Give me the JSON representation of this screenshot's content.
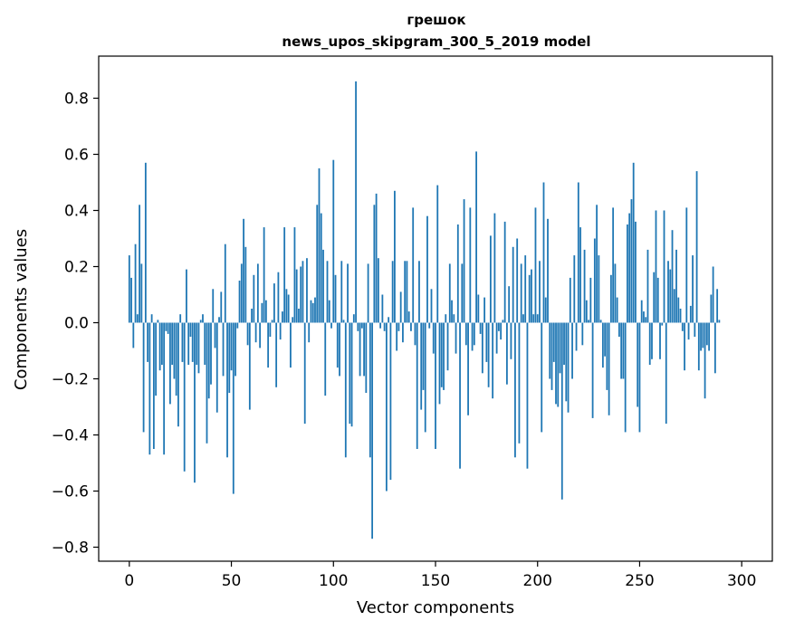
{
  "chart_data": {
    "type": "bar",
    "title": "грешок",
    "subtitle": "news_upos_skipgram_300_5_2019 model",
    "xlabel": "Vector components",
    "ylabel": "Components values",
    "xlim": [
      -15,
      315
    ],
    "ylim": [
      -0.85,
      0.95
    ],
    "xticks": [
      0,
      50,
      100,
      150,
      200,
      250,
      300
    ],
    "yticks": [
      -0.8,
      -0.6,
      -0.4,
      -0.2,
      0.0,
      0.2,
      0.4,
      0.6,
      0.8
    ],
    "ytick_labels": [
      "−0.8",
      "−0.6",
      "−0.4",
      "−0.2",
      "0.0",
      "0.2",
      "0.4",
      "0.6",
      "0.8"
    ],
    "bar_color": "#1f77b4",
    "values": [
      0.24,
      0.16,
      -0.09,
      0.28,
      0.03,
      0.42,
      0.21,
      -0.39,
      0.57,
      -0.14,
      -0.47,
      0.03,
      -0.45,
      -0.26,
      0.01,
      -0.17,
      -0.15,
      -0.47,
      -0.03,
      -0.04,
      -0.29,
      -0.15,
      -0.2,
      -0.26,
      -0.37,
      0.03,
      -0.14,
      -0.53,
      0.19,
      -0.15,
      -0.05,
      -0.14,
      -0.57,
      -0.15,
      -0.18,
      0.01,
      0.03,
      -0.15,
      -0.43,
      -0.27,
      -0.22,
      0.12,
      -0.09,
      -0.32,
      0.02,
      0.11,
      -0.19,
      0.28,
      -0.48,
      -0.25,
      -0.17,
      -0.61,
      -0.19,
      -0.02,
      0.15,
      0.21,
      0.37,
      0.27,
      -0.08,
      -0.31,
      0.05,
      0.17,
      -0.07,
      0.21,
      -0.09,
      0.07,
      0.34,
      0.08,
      -0.16,
      -0.05,
      0.01,
      0.14,
      -0.23,
      0.18,
      -0.06,
      0.04,
      0.34,
      0.12,
      0.1,
      -0.16,
      0.02,
      0.34,
      0.19,
      0.05,
      0.2,
      0.22,
      -0.36,
      0.23,
      -0.07,
      0.08,
      0.07,
      0.09,
      0.42,
      0.55,
      0.39,
      0.26,
      -0.26,
      0.22,
      0.08,
      -0.02,
      0.58,
      0.17,
      -0.16,
      -0.19,
      0.22,
      0.01,
      -0.48,
      0.21,
      -0.36,
      -0.37,
      0.03,
      0.86,
      -0.03,
      -0.19,
      -0.02,
      -0.19,
      -0.25,
      0.21,
      -0.48,
      -0.77,
      0.42,
      0.46,
      0.23,
      -0.02,
      0.1,
      -0.03,
      -0.6,
      0.02,
      -0.56,
      0.22,
      0.47,
      -0.1,
      -0.03,
      0.11,
      -0.07,
      0.22,
      0.22,
      0.04,
      -0.03,
      0.41,
      -0.08,
      -0.45,
      0.22,
      -0.31,
      -0.24,
      -0.39,
      0.38,
      -0.02,
      0.12,
      -0.11,
      -0.45,
      0.49,
      -0.29,
      -0.23,
      -0.24,
      0.03,
      -0.17,
      0.21,
      0.08,
      0.03,
      -0.11,
      0.35,
      -0.52,
      0.21,
      0.44,
      -0.08,
      -0.33,
      0.41,
      -0.1,
      -0.08,
      0.61,
      0.1,
      -0.04,
      -0.18,
      0.09,
      -0.14,
      -0.23,
      0.31,
      -0.27,
      0.39,
      -0.11,
      -0.03,
      -0.06,
      0.01,
      0.36,
      -0.22,
      0.13,
      -0.13,
      0.27,
      -0.48,
      0.3,
      -0.43,
      0.21,
      0.03,
      0.24,
      -0.52,
      0.17,
      0.19,
      0.03,
      0.41,
      0.03,
      0.22,
      -0.39,
      0.5,
      0.09,
      0.37,
      -0.2,
      -0.24,
      -0.14,
      -0.29,
      -0.3,
      -0.18,
      -0.63,
      -0.15,
      -0.28,
      -0.32,
      0.16,
      -0.2,
      0.24,
      -0.1,
      0.5,
      0.34,
      -0.08,
      0.26,
      0.08,
      0.01,
      0.16,
      -0.34,
      0.3,
      0.42,
      0.24,
      0.01,
      -0.16,
      -0.12,
      -0.24,
      -0.33,
      0.17,
      0.41,
      0.21,
      0.09,
      -0.05,
      -0.2,
      -0.2,
      -0.39,
      0.35,
      0.39,
      0.44,
      0.57,
      0.36,
      -0.3,
      -0.39,
      0.08,
      0.04,
      0.02,
      0.26,
      -0.15,
      -0.13,
      0.18,
      0.4,
      0.16,
      -0.13,
      -0.01,
      0.4,
      -0.36,
      0.22,
      0.19,
      0.33,
      0.12,
      0.26,
      0.09,
      0.05,
      -0.03,
      -0.17,
      0.41,
      -0.06,
      0.06,
      0.24,
      -0.05,
      0.54,
      -0.17,
      -0.1,
      -0.09,
      -0.27,
      -0.08,
      -0.1,
      0.1,
      0.2,
      -0.18,
      0.12,
      0.01
    ]
  }
}
